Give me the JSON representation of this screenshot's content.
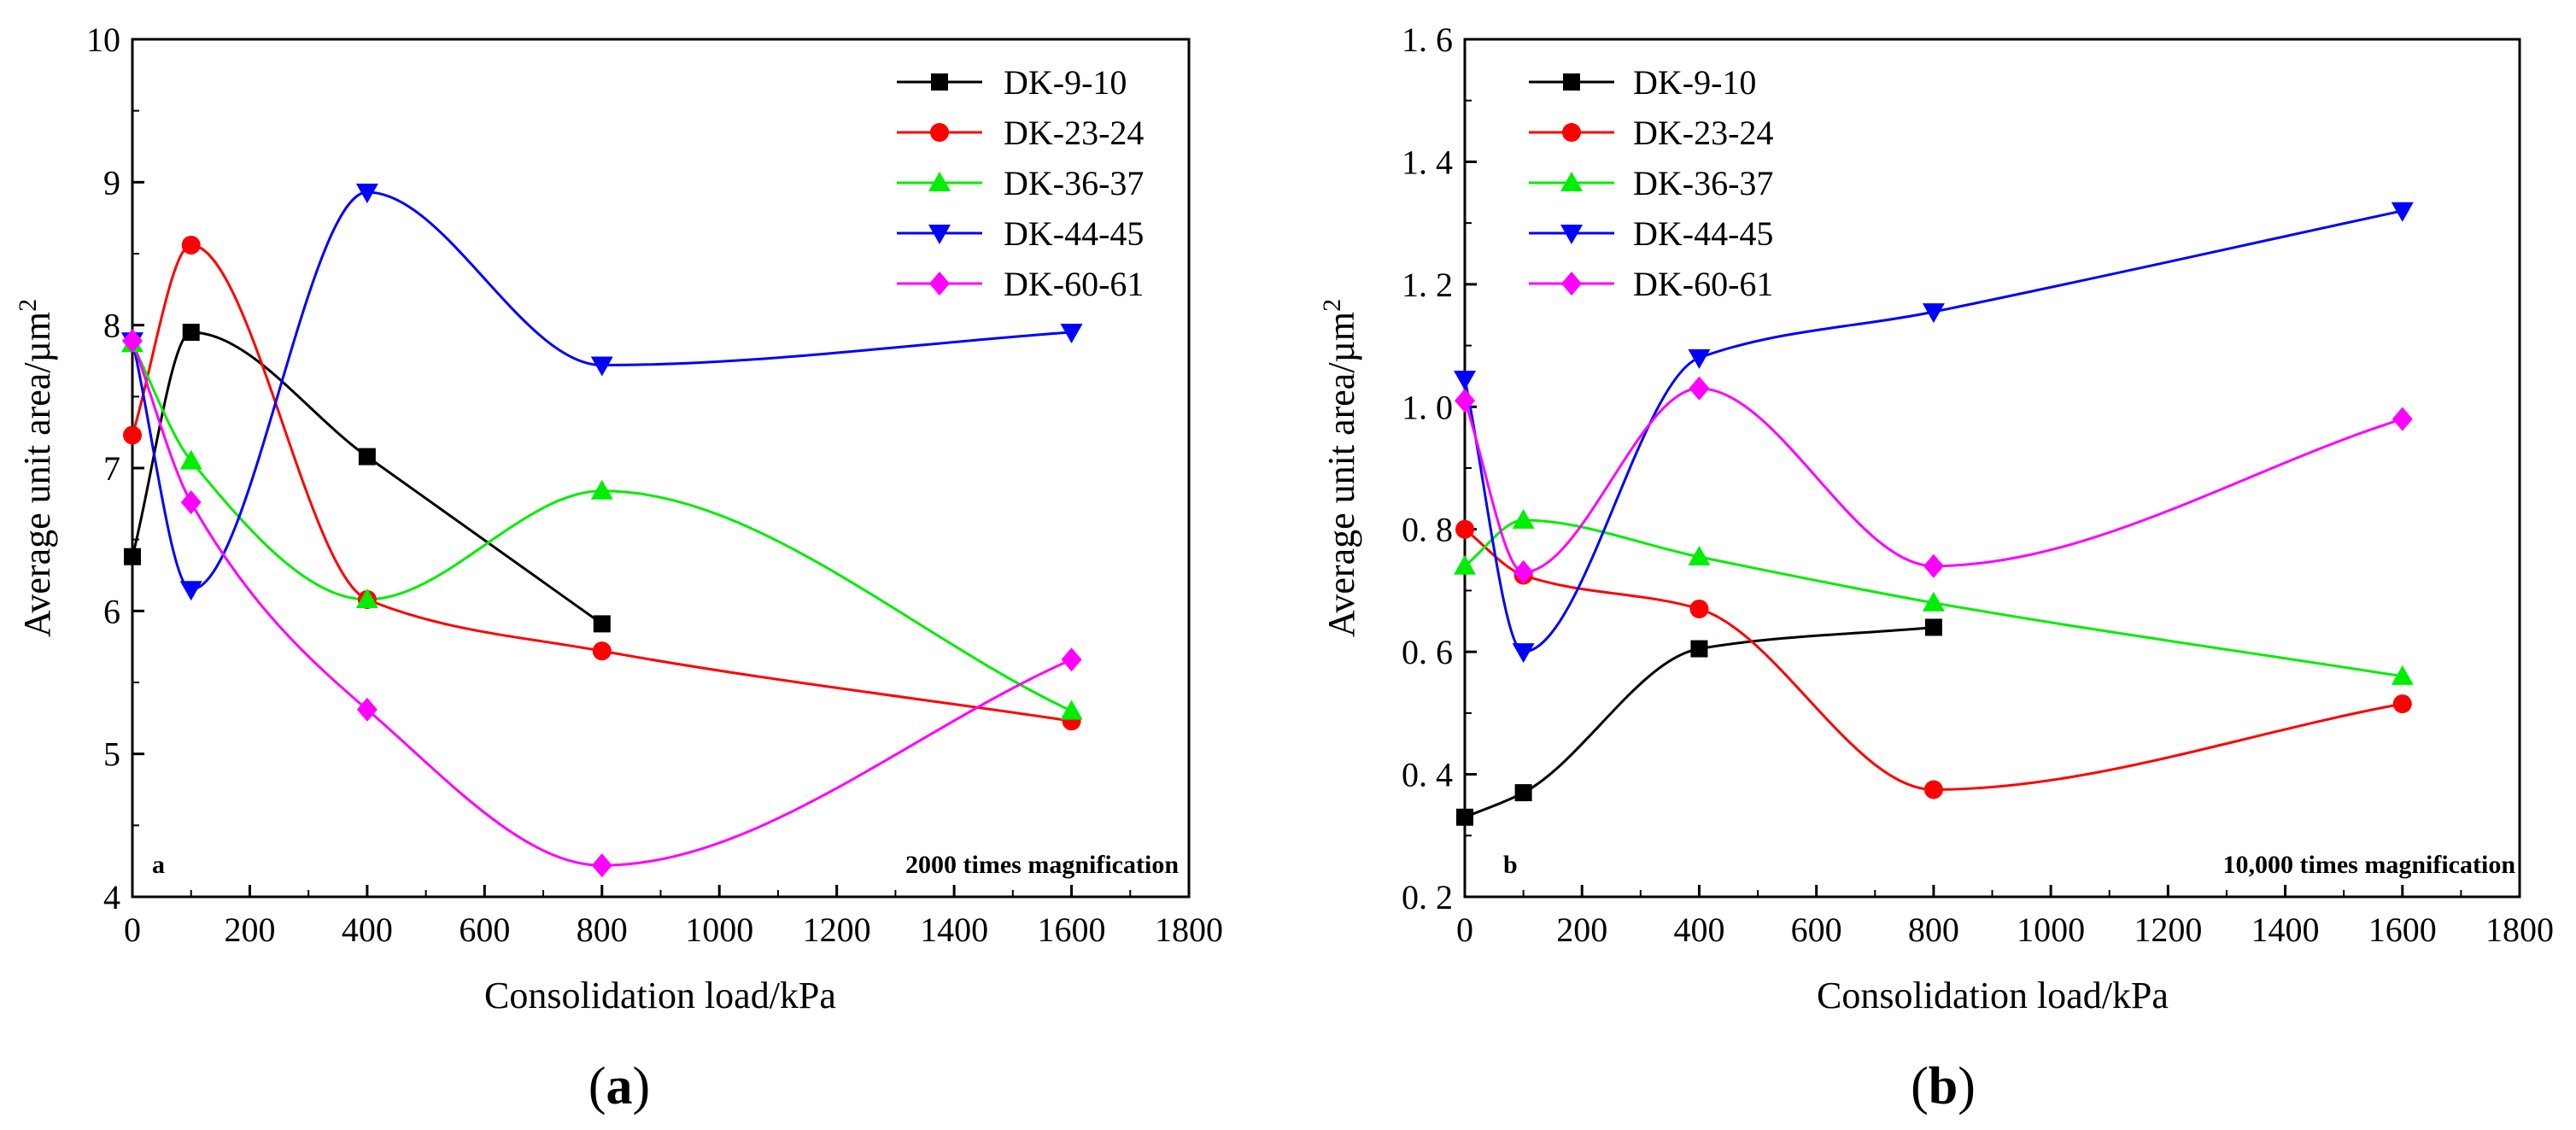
{
  "caption_a_letter": "a",
  "caption_b_letter": "b",
  "series_style": [
    {
      "name": "DK-9-10",
      "color": "#000000",
      "marker": "square"
    },
    {
      "name": "DK-23-24",
      "color": "#ff0000",
      "marker": "circle"
    },
    {
      "name": "DK-36-37",
      "color": "#00ee00",
      "marker": "triangle-up"
    },
    {
      "name": "DK-44-45",
      "color": "#0000ff",
      "marker": "triangle-down"
    },
    {
      "name": "DK-60-61",
      "color": "#ff00ff",
      "marker": "diamond"
    }
  ],
  "chart_data": [
    {
      "type": "line",
      "panel": "a",
      "panel_tag": "a",
      "annotation": "2000 times magnification",
      "xlabel": "Consolidation load/kPa",
      "ylabel": "Average unit area/µm",
      "ylabel_superscript": "2",
      "xlim": [
        0,
        1800
      ],
      "ylim": [
        4,
        10
      ],
      "xticks": [
        0,
        200,
        400,
        600,
        800,
        1000,
        1200,
        1400,
        1600,
        1800
      ],
      "yticks": [
        4,
        5,
        6,
        7,
        8,
        9,
        10
      ],
      "ytick_labels": [
        "4",
        "5",
        "6",
        "7",
        "8",
        "9",
        "10"
      ],
      "legend_position": "top-right",
      "series": [
        {
          "name": "DK-9-10",
          "x": [
            0,
            100,
            400,
            800
          ],
          "values": [
            6.38,
            7.95,
            7.08,
            5.91
          ]
        },
        {
          "name": "DK-23-24",
          "x": [
            0,
            100,
            400,
            800,
            1600
          ],
          "values": [
            7.23,
            8.56,
            6.08,
            5.72,
            5.23
          ]
        },
        {
          "name": "DK-36-37",
          "x": [
            0,
            100,
            400,
            800,
            1600
          ],
          "values": [
            7.87,
            7.05,
            6.08,
            6.84,
            5.3
          ]
        },
        {
          "name": "DK-44-45",
          "x": [
            0,
            100,
            400,
            800,
            1600
          ],
          "values": [
            7.89,
            6.15,
            8.93,
            7.72,
            7.95
          ]
        },
        {
          "name": "DK-60-61",
          "x": [
            0,
            100,
            400,
            800,
            1600
          ],
          "values": [
            7.89,
            6.76,
            5.31,
            4.22,
            5.66
          ]
        }
      ]
    },
    {
      "type": "line",
      "panel": "b",
      "panel_tag": "b",
      "annotation": "10,000 times magnification",
      "xlabel": "Consolidation load/kPa",
      "ylabel": "Average unit area/µm",
      "ylabel_superscript": "2",
      "xlim": [
        0,
        1800
      ],
      "ylim": [
        0.2,
        1.6
      ],
      "xticks": [
        0,
        200,
        400,
        600,
        800,
        1000,
        1200,
        1400,
        1600,
        1800
      ],
      "yticks": [
        0.2,
        0.4,
        0.6,
        0.8,
        1.0,
        1.2,
        1.4,
        1.6
      ],
      "ytick_labels": [
        "0. 2",
        "0. 4",
        "0. 6",
        "0. 8",
        "1. 0",
        "1. 2",
        "1. 4",
        "1. 6"
      ],
      "legend_position": "top-left",
      "series": [
        {
          "name": "DK-9-10",
          "x": [
            0,
            100,
            400,
            800
          ],
          "values": [
            0.33,
            0.37,
            0.605,
            0.64
          ]
        },
        {
          "name": "DK-23-24",
          "x": [
            0,
            100,
            400,
            800,
            1600
          ],
          "values": [
            0.8,
            0.725,
            0.67,
            0.375,
            0.515
          ]
        },
        {
          "name": "DK-36-37",
          "x": [
            0,
            100,
            400,
            800,
            1600
          ],
          "values": [
            0.74,
            0.815,
            0.755,
            0.68,
            0.56
          ]
        },
        {
          "name": "DK-44-45",
          "x": [
            0,
            100,
            400,
            800,
            1600
          ],
          "values": [
            1.045,
            0.6,
            1.08,
            1.155,
            1.32
          ]
        },
        {
          "name": "DK-60-61",
          "x": [
            0,
            100,
            400,
            800,
            1600
          ],
          "values": [
            1.01,
            0.73,
            1.03,
            0.74,
            0.98
          ]
        }
      ]
    }
  ]
}
